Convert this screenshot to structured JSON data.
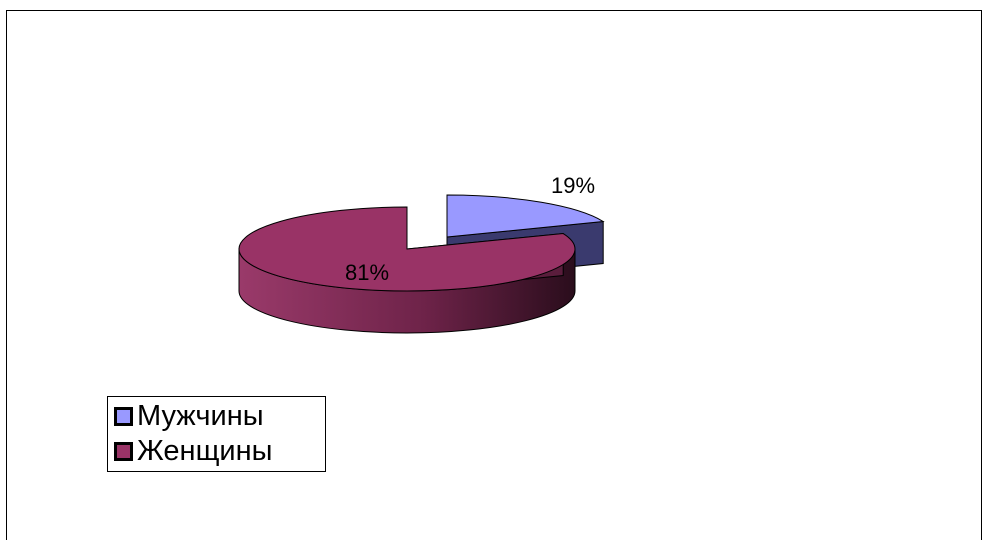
{
  "chart_data": {
    "type": "pie",
    "categories": [
      "Мужчины",
      "Женщины"
    ],
    "values": [
      19,
      81
    ],
    "data_labels": [
      "19%",
      "81%"
    ],
    "colors": [
      "#9999ff",
      "#993366"
    ],
    "side_colors": [
      "#3a3a6e",
      "#6b2548"
    ],
    "legend_placement": "bottom-left",
    "style": "3d-exploded"
  },
  "legend": {
    "items": [
      {
        "label": "Мужчины",
        "color": "#9999ff"
      },
      {
        "label": "Женщины",
        "color": "#993366"
      }
    ]
  }
}
